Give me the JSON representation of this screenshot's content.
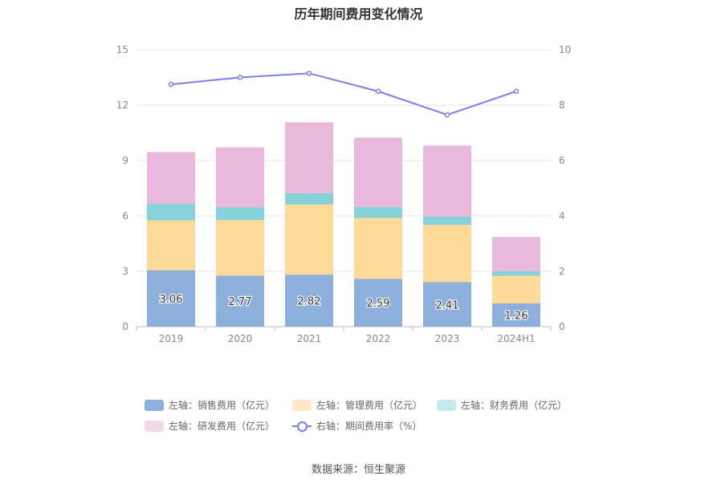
{
  "chart_data": {
    "type": "bar",
    "title": "历年期间费用变化情况",
    "categories": [
      "2019",
      "2020",
      "2021",
      "2022",
      "2023",
      "2024H1"
    ],
    "series": [
      {
        "name": "左轴：销售费用（亿元）",
        "axis": "left",
        "color": "#8eaedc",
        "values": [
          3.06,
          2.77,
          2.82,
          2.59,
          2.41,
          1.26
        ],
        "labels": [
          "3.06",
          "2.77",
          "2.82",
          "2.59",
          "2.41",
          "1.26"
        ]
      },
      {
        "name": "左轴：管理费用（亿元）",
        "axis": "left",
        "color": "#ffd998",
        "values": [
          2.7,
          3.0,
          3.8,
          3.3,
          3.1,
          1.5
        ]
      },
      {
        "name": "左轴：财务费用（亿元）",
        "axis": "left",
        "color": "#85d3d8",
        "values": [
          0.9,
          0.7,
          0.6,
          0.6,
          0.45,
          0.25
        ]
      },
      {
        "name": "左轴：研发费用（亿元）",
        "axis": "left",
        "color": "#e8b9da",
        "values": [
          2.8,
          3.25,
          3.85,
          3.75,
          3.85,
          1.85
        ]
      },
      {
        "name": "右轴：期间费用率（%）",
        "axis": "right",
        "type": "line",
        "color": "#7b7fe6",
        "values": [
          8.75,
          9.0,
          9.15,
          8.5,
          7.65,
          8.5
        ]
      }
    ],
    "y_left": {
      "ticks": [
        "0",
        "3",
        "6",
        "9",
        "12",
        "15"
      ],
      "min": 0,
      "max": 15
    },
    "y_right": {
      "ticks": [
        "0",
        "2",
        "4",
        "6",
        "8",
        "10"
      ],
      "min": 0,
      "max": 10
    },
    "grid": true,
    "legend_position": "bottom"
  },
  "source": "数据来源：恒生聚源"
}
